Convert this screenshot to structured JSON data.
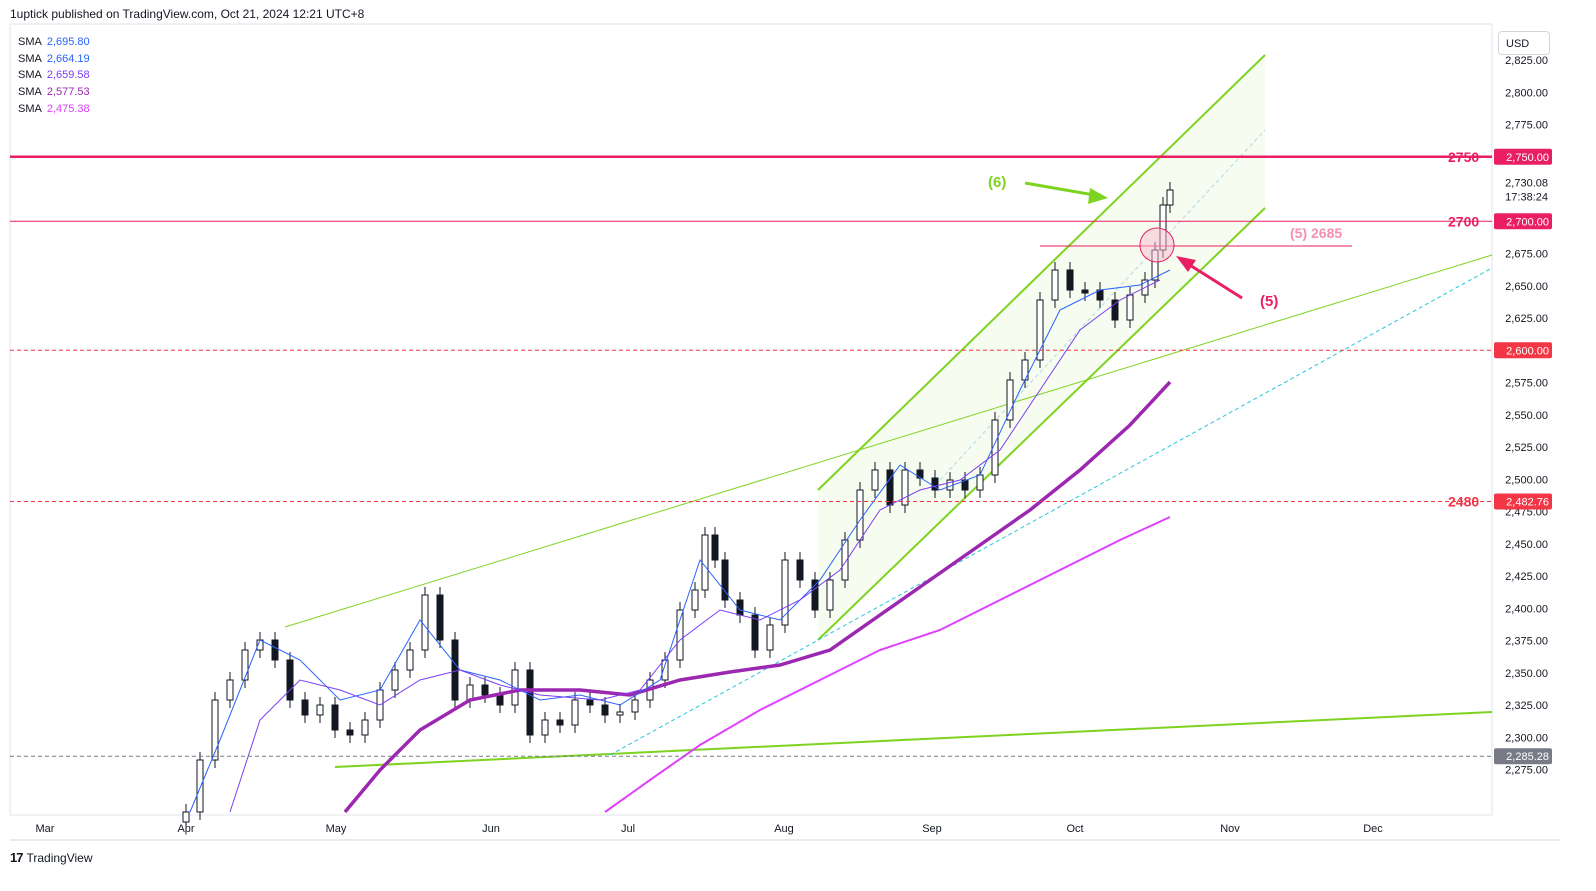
{
  "header": {
    "published": "1uptick published on TradingView.com, Oct 21, 2024 12:21 UTC+8"
  },
  "currency": "USD",
  "footer": {
    "brand_mark": "17",
    "brand_name": "TradingView"
  },
  "sma_legend": [
    {
      "name": "SMA",
      "value": "2,695.80",
      "color": "#2962ff"
    },
    {
      "name": "SMA",
      "value": "2,664.19",
      "color": "#2962ff"
    },
    {
      "name": "SMA",
      "value": "2,659.58",
      "color": "#7b3ef5"
    },
    {
      "name": "SMA",
      "value": "2,577.53",
      "color": "#9c27b0"
    },
    {
      "name": "SMA",
      "value": "2,475.38",
      "color": "#e040fb"
    }
  ],
  "chart_data": {
    "type": "candlestick",
    "x_axis": {
      "ticks": [
        "Mar",
        "Apr",
        "May",
        "Jun",
        "Jul",
        "Aug",
        "Sep",
        "Oct",
        "Nov",
        "Dec"
      ]
    },
    "y_axis": {
      "range": [
        2260,
        2835
      ],
      "ticks": [
        "2,825.00",
        "2,800.00",
        "2,775.00",
        "2,730.08",
        "17:38:24",
        "2,675.00",
        "2,650.00",
        "2,625.00",
        "2,575.00",
        "2,550.00",
        "2,525.00",
        "2,500.00",
        "2,475.00",
        "2,450.00",
        "2,425.00",
        "2,400.00",
        "2,375.00",
        "2,350.00",
        "2,325.00",
        "2,300.00",
        "2,275.00"
      ],
      "tick_values": [
        2825,
        2800,
        2775,
        2730.08,
        2719,
        2675,
        2650,
        2625,
        2575,
        2550,
        2525,
        2500,
        2475,
        2450,
        2425,
        2400,
        2375,
        2350,
        2325,
        2300,
        2275
      ]
    },
    "price_badges": [
      {
        "label": "2,750.00",
        "value": 2750,
        "color": "#e91e63"
      },
      {
        "label": "2,700.00",
        "value": 2700,
        "color": "#e91e63"
      },
      {
        "label": "2,600.00",
        "value": 2600,
        "color": "#f23645"
      },
      {
        "label": "2,482.76",
        "value": 2482.76,
        "color": "#f23645"
      },
      {
        "label": "2,285.28",
        "value": 2285.28,
        "color": "#787b86"
      }
    ],
    "horizontal_levels": [
      {
        "value": 2750,
        "label": "2750",
        "style": "solid-thick",
        "color": "#e91e63"
      },
      {
        "value": 2700,
        "label": "2700",
        "style": "solid",
        "color": "#e91e63"
      },
      {
        "value": 2600,
        "label": "",
        "style": "dashed",
        "color": "#f23645"
      },
      {
        "value": 2482.76,
        "label": "2480",
        "style": "dashed",
        "color": "#f23645"
      },
      {
        "value": 2285.28,
        "label": "",
        "style": "dashed",
        "color": "#787b86"
      }
    ],
    "annotations": [
      {
        "text": "(6)",
        "color": "#7ed321"
      },
      {
        "text": "(5) 2685",
        "color": "#f48fb1"
      },
      {
        "text": "(5)",
        "color": "#e91e63"
      }
    ],
    "colors": {
      "candle_up": "#ffffff",
      "candle_down": "#131722",
      "channel": "#7ed321",
      "sma_fast": "#2962ff",
      "sma_mid": "#7b3ef5",
      "sma_slow": "#9c27b0",
      "sma_long": "#e040fb",
      "trend_dash": "#26c6da"
    }
  }
}
